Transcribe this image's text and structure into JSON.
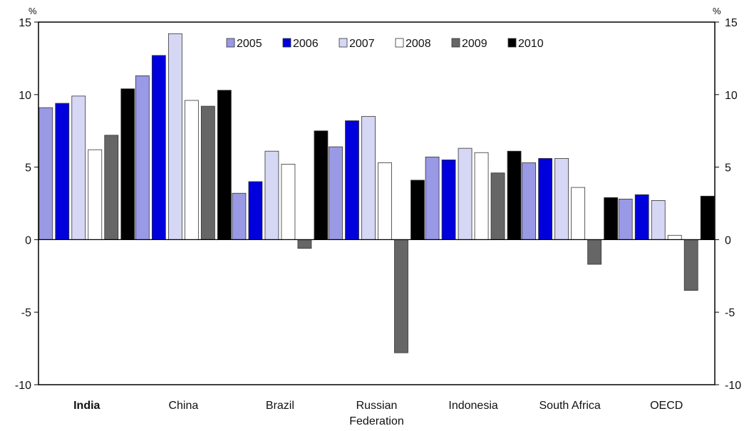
{
  "chart_data": {
    "type": "bar",
    "title": "",
    "xlabel": "",
    "ylabel": "",
    "y_unit_left": "%",
    "y_unit_right": "%",
    "ylim": [
      -10,
      15
    ],
    "yticks": [
      15,
      10,
      5,
      0,
      -5,
      -10
    ],
    "yticks_right": [
      15,
      10,
      5,
      0,
      -5,
      -10
    ],
    "grid": false,
    "legend_position": "top-center",
    "categories": [
      {
        "lines": [
          "India"
        ],
        "bold": true
      },
      {
        "lines": [
          "China"
        ],
        "bold": false
      },
      {
        "lines": [
          "Brazil"
        ],
        "bold": false
      },
      {
        "lines": [
          "Russian",
          "Federation"
        ],
        "bold": false
      },
      {
        "lines": [
          "Indonesia"
        ],
        "bold": false
      },
      {
        "lines": [
          "South Africa"
        ],
        "bold": false
      },
      {
        "lines": [
          "OECD"
        ],
        "bold": false
      }
    ],
    "series": [
      {
        "name": "2005",
        "color": "#9999e6",
        "values": [
          9.1,
          11.3,
          3.2,
          6.4,
          5.7,
          5.3,
          2.8
        ]
      },
      {
        "name": "2006",
        "color": "#0000dd",
        "values": [
          9.4,
          12.7,
          4.0,
          8.2,
          5.5,
          5.6,
          3.1
        ]
      },
      {
        "name": "2007",
        "color": "#d6d6f5",
        "values": [
          9.9,
          14.2,
          6.1,
          8.5,
          6.3,
          5.6,
          2.7
        ]
      },
      {
        "name": "2008",
        "color": "#ffffff",
        "values": [
          6.2,
          9.6,
          5.2,
          5.3,
          6.0,
          3.6,
          0.3
        ]
      },
      {
        "name": "2009",
        "color": "#666666",
        "values": [
          7.2,
          9.2,
          -0.6,
          -7.8,
          4.6,
          -1.7,
          -3.5
        ]
      },
      {
        "name": "2010",
        "color": "#000000",
        "values": [
          10.4,
          10.3,
          7.5,
          4.1,
          6.1,
          2.9,
          3.0
        ]
      }
    ]
  }
}
